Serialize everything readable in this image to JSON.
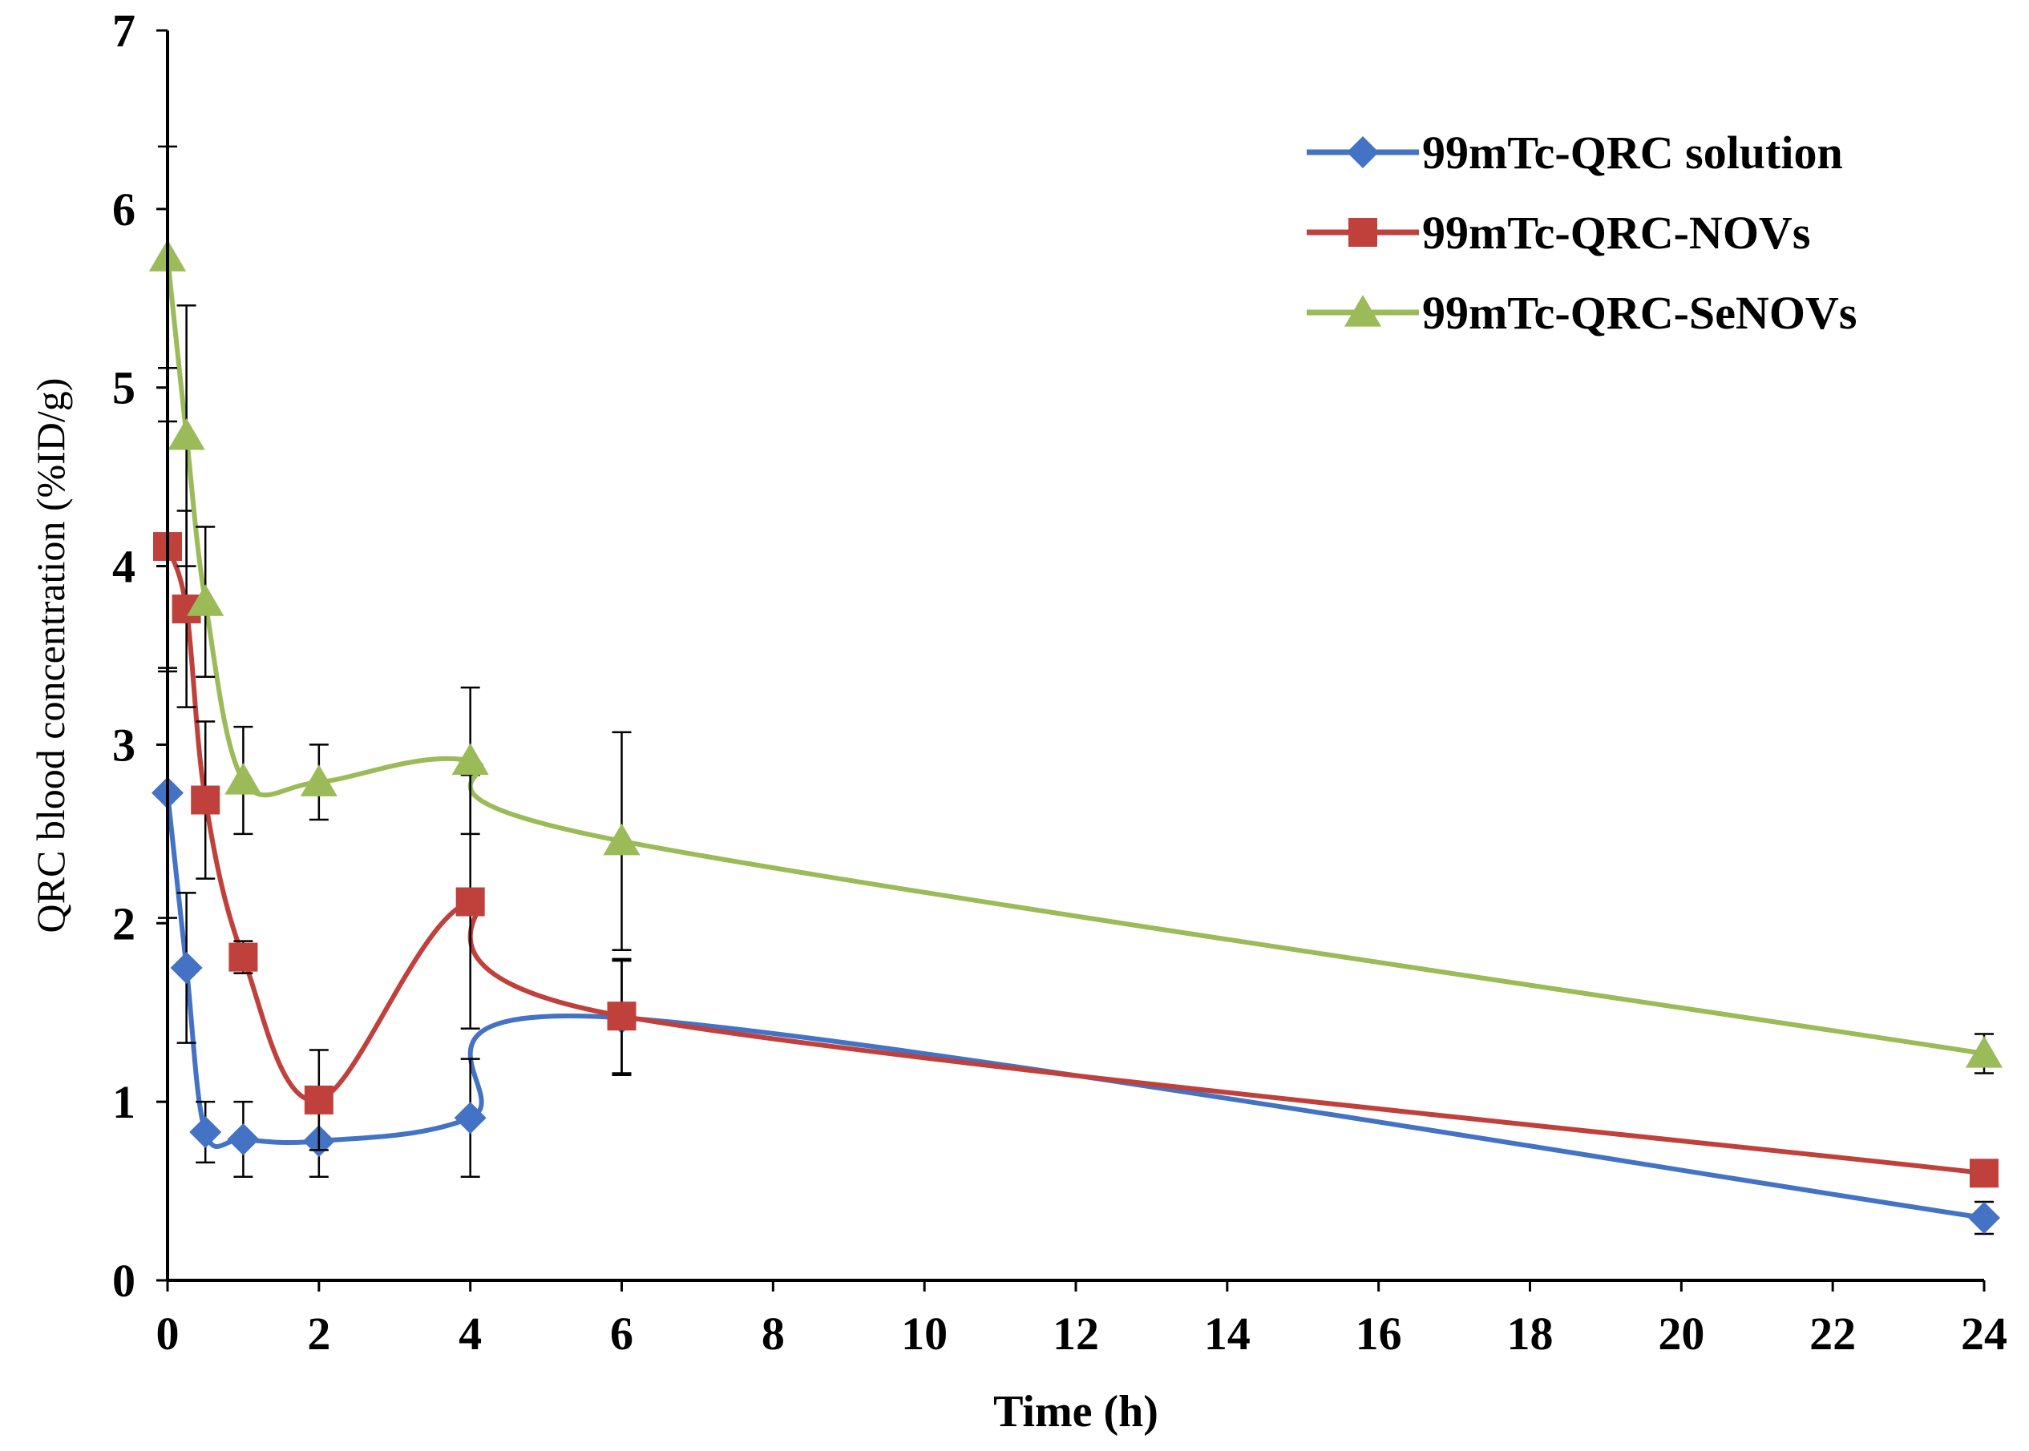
{
  "chart_data": {
    "type": "line",
    "title": "",
    "xlabel": "Time (h)",
    "ylabel": "QRC blood concentration (%ID/g)",
    "xlim": [
      0,
      24
    ],
    "ylim": [
      0,
      7
    ],
    "x_ticks": [
      "0",
      "2",
      "4",
      "6",
      "8",
      "10",
      "12",
      "14",
      "16",
      "18",
      "20",
      "22",
      "24"
    ],
    "y_ticks": [
      "0",
      "1",
      "2",
      "3",
      "4",
      "5",
      "6",
      "7"
    ],
    "grid": false,
    "legend_position": "top-right",
    "series": [
      {
        "name": "99mTc-QRC solution",
        "color": "#4472C4",
        "marker": "diamond",
        "x": [
          0,
          0.25,
          0.5,
          1,
          2,
          4,
          6,
          24
        ],
        "y": [
          2.73,
          1.75,
          0.83,
          0.79,
          0.78,
          0.91,
          1.47,
          0.35
        ],
        "err": [
          0.7,
          0.42,
          0.17,
          0.21,
          0.2,
          0.33,
          0.32,
          0.09
        ]
      },
      {
        "name": "99mTc-QRC-NOVs",
        "color": "#C0403C",
        "marker": "square",
        "x": [
          0,
          0.25,
          0.5,
          1,
          2,
          4,
          6,
          24
        ],
        "y": [
          4.11,
          3.76,
          2.69,
          1.81,
          1.01,
          2.12,
          1.48,
          0.6
        ],
        "err": [
          0.7,
          0.55,
          0.44,
          0.09,
          0.28,
          0.71,
          0.32,
          0.07
        ]
      },
      {
        "name": "99mTc-QRC-SeNOVs",
        "color": "#9BBB59",
        "marker": "triangle",
        "x": [
          0,
          0.25,
          0.5,
          1,
          2,
          4,
          6,
          24
        ],
        "y": [
          5.73,
          4.73,
          3.8,
          2.8,
          2.79,
          2.91,
          2.46,
          1.27
        ],
        "err": [
          0.62,
          0.73,
          0.42,
          0.3,
          0.21,
          0.41,
          0.61,
          0.11
        ]
      }
    ]
  }
}
